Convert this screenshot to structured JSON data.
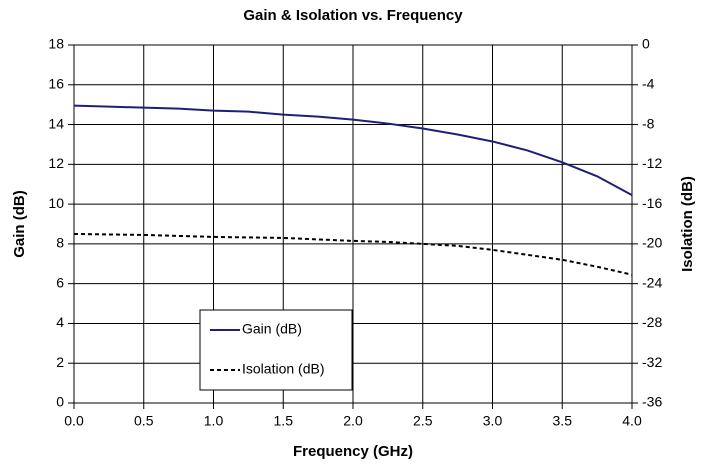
{
  "chart_data": {
    "type": "line",
    "title": "Gain & Isolation vs. Frequency",
    "xlabel": "Frequency (GHz)",
    "ylabel": "Gain (dB)",
    "y2label": "Isolation (dB)",
    "x": [
      0,
      0.25,
      0.5,
      0.75,
      1,
      1.25,
      1.5,
      1.75,
      2,
      2.25,
      2.5,
      2.75,
      3,
      3.25,
      3.5,
      3.75,
      4
    ],
    "series": [
      {
        "name": "Gain (dB)",
        "color": "#1f1f7a",
        "line_style": "solid",
        "values": [
          14.95,
          14.9,
          14.85,
          14.8,
          14.7,
          14.65,
          14.5,
          14.4,
          14.25,
          14.05,
          13.8,
          13.5,
          13.15,
          12.7,
          12.1,
          11.4,
          10.45
        ]
      },
      {
        "name": "Isolation (dB)",
        "color": "#000000",
        "line_style": "dashed",
        "axis": "y2",
        "values": [
          -19,
          -19.05,
          -19.1,
          -19.2,
          -19.3,
          -19.35,
          -19.4,
          -19.55,
          -19.7,
          -19.8,
          -20,
          -20.2,
          -20.6,
          -21.1,
          -21.6,
          -22.3,
          -23.1
        ]
      }
    ],
    "xlim": [
      0,
      4
    ],
    "xticks": [
      {
        "value": 0,
        "label": "0.0"
      },
      0.5,
      {
        "value": 1,
        "label": "1.0"
      },
      1.5,
      {
        "value": 2,
        "label": "2.0"
      },
      2.5,
      {
        "value": 3,
        "label": "3.0"
      },
      3.5,
      {
        "value": 4,
        "label": "4.0"
      }
    ],
    "ylim": [
      0,
      18
    ],
    "yticks": [
      0,
      2,
      4,
      6,
      8,
      10,
      12,
      14,
      16,
      18
    ],
    "y2lim": [
      -36,
      0
    ],
    "y2ticks": [
      -36,
      -32,
      -28,
      -24,
      -20,
      -16,
      -12,
      -8,
      -4,
      0
    ],
    "grid": true,
    "legend": "lower left"
  }
}
